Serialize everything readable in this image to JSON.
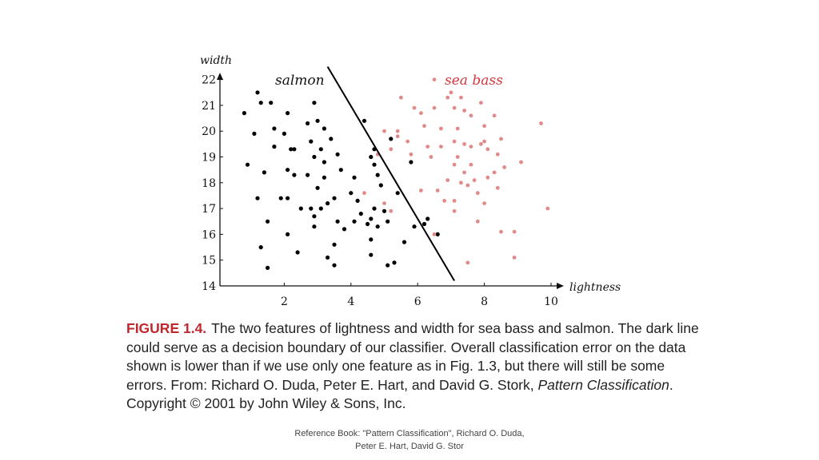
{
  "chart_data": {
    "type": "scatter",
    "title": "",
    "xlabel": "lightness",
    "ylabel": "width",
    "xlim": [
      0.3,
      10.2
    ],
    "ylim": [
      14,
      22.2
    ],
    "xticks": [
      "2",
      "4",
      "6",
      "8",
      "10"
    ],
    "yticks": [
      "14",
      "15",
      "16",
      "17",
      "18",
      "19",
      "20",
      "21",
      "22"
    ],
    "grid": false,
    "decision_boundary": {
      "x1": 3.3,
      "y1": 22.5,
      "x2": 7.1,
      "y2": 14.2
    },
    "series": [
      {
        "name": "salmon",
        "color": "#000000",
        "points": [
          [
            0.8,
            20.7
          ],
          [
            0.9,
            18.7
          ],
          [
            1.1,
            19.9
          ],
          [
            1.2,
            21.5
          ],
          [
            1.3,
            21.1
          ],
          [
            1.4,
            18.4
          ],
          [
            1.2,
            17.4
          ],
          [
            1.5,
            16.5
          ],
          [
            1.6,
            21.1
          ],
          [
            1.7,
            20.1
          ],
          [
            1.7,
            19.4
          ],
          [
            1.3,
            15.5
          ],
          [
            1.5,
            14.7
          ],
          [
            2.0,
            19.9
          ],
          [
            2.1,
            20.7
          ],
          [
            2.2,
            19.3
          ],
          [
            2.3,
            18.3
          ],
          [
            2.1,
            18.5
          ],
          [
            2.1,
            17.4
          ],
          [
            2.5,
            17.0
          ],
          [
            2.1,
            16.0
          ],
          [
            2.7,
            20.3
          ],
          [
            2.9,
            21.1
          ],
          [
            2.8,
            19.6
          ],
          [
            3.0,
            20.4
          ],
          [
            3.2,
            20.1
          ],
          [
            3.1,
            19.3
          ],
          [
            3.2,
            18.8
          ],
          [
            3.2,
            18.2
          ],
          [
            3.4,
            19.7
          ],
          [
            3.6,
            19.1
          ],
          [
            3.7,
            18.5
          ],
          [
            2.9,
            19.0
          ],
          [
            2.7,
            18.3
          ],
          [
            3.0,
            17.8
          ],
          [
            2.8,
            17.0
          ],
          [
            3.1,
            17.0
          ],
          [
            2.9,
            16.7
          ],
          [
            3.3,
            17.2
          ],
          [
            3.5,
            17.4
          ],
          [
            2.9,
            16.3
          ],
          [
            3.6,
            16.5
          ],
          [
            3.8,
            16.2
          ],
          [
            4.1,
            16.5
          ],
          [
            4.3,
            16.8
          ],
          [
            4.0,
            17.6
          ],
          [
            4.1,
            18.2
          ],
          [
            4.2,
            17.3
          ],
          [
            4.4,
            20.4
          ],
          [
            4.6,
            19.0
          ],
          [
            4.7,
            19.3
          ],
          [
            4.7,
            18.7
          ],
          [
            4.8,
            18.3
          ],
          [
            4.9,
            17.9
          ],
          [
            4.7,
            17.0
          ],
          [
            5.0,
            16.9
          ],
          [
            4.6,
            16.6
          ],
          [
            4.5,
            16.4
          ],
          [
            4.8,
            16.3
          ],
          [
            5.1,
            16.5
          ],
          [
            4.6,
            15.8
          ],
          [
            3.5,
            15.6
          ],
          [
            3.3,
            15.1
          ],
          [
            3.5,
            14.8
          ],
          [
            4.6,
            15.2
          ],
          [
            5.1,
            14.8
          ],
          [
            5.3,
            14.9
          ],
          [
            5.4,
            17.6
          ],
          [
            5.6,
            15.7
          ],
          [
            5.9,
            16.3
          ],
          [
            6.3,
            16.6
          ],
          [
            6.2,
            16.4
          ],
          [
            5.8,
            18.8
          ],
          [
            6.6,
            16.0
          ],
          [
            5.2,
            19.7
          ],
          [
            2.4,
            15.3
          ],
          [
            1.9,
            17.4
          ],
          [
            2.3,
            19.3
          ]
        ]
      },
      {
        "name": "sea bass",
        "color": "#e28a8a",
        "points": [
          [
            6.5,
            22.0
          ],
          [
            5.5,
            21.3
          ],
          [
            5.9,
            20.9
          ],
          [
            6.1,
            20.7
          ],
          [
            6.5,
            20.9
          ],
          [
            6.9,
            21.3
          ],
          [
            7.0,
            21.5
          ],
          [
            7.3,
            21.3
          ],
          [
            7.1,
            20.9
          ],
          [
            7.4,
            20.8
          ],
          [
            7.6,
            20.6
          ],
          [
            7.9,
            21.1
          ],
          [
            8.3,
            20.6
          ],
          [
            8.0,
            20.2
          ],
          [
            7.2,
            20.1
          ],
          [
            6.7,
            20.1
          ],
          [
            6.2,
            20.2
          ],
          [
            5.4,
            19.8
          ],
          [
            5.7,
            19.6
          ],
          [
            6.3,
            19.4
          ],
          [
            6.7,
            19.4
          ],
          [
            7.1,
            19.6
          ],
          [
            7.4,
            19.5
          ],
          [
            7.6,
            19.4
          ],
          [
            7.9,
            19.5
          ],
          [
            8.1,
            19.3
          ],
          [
            8.5,
            19.7
          ],
          [
            8.4,
            19.1
          ],
          [
            9.1,
            18.8
          ],
          [
            9.7,
            20.3
          ],
          [
            8.6,
            18.6
          ],
          [
            8.3,
            18.4
          ],
          [
            8.1,
            18.2
          ],
          [
            7.7,
            18.1
          ],
          [
            7.3,
            18.0
          ],
          [
            6.9,
            18.1
          ],
          [
            6.6,
            17.7
          ],
          [
            6.1,
            17.7
          ],
          [
            5.8,
            19.1
          ],
          [
            7.1,
            18.7
          ],
          [
            7.4,
            18.4
          ],
          [
            7.5,
            17.9
          ],
          [
            7.8,
            17.6
          ],
          [
            8.0,
            17.2
          ],
          [
            8.4,
            17.8
          ],
          [
            7.1,
            17.3
          ],
          [
            6.8,
            17.3
          ],
          [
            7.1,
            16.9
          ],
          [
            7.8,
            16.5
          ],
          [
            8.5,
            16.1
          ],
          [
            8.9,
            16.1
          ],
          [
            9.9,
            17.0
          ],
          [
            6.5,
            16.0
          ],
          [
            7.5,
            14.9
          ],
          [
            8.9,
            15.1
          ],
          [
            5.2,
            16.9
          ],
          [
            4.4,
            17.6
          ],
          [
            5.0,
            17.2
          ],
          [
            5.0,
            20.0
          ],
          [
            5.4,
            20.0
          ],
          [
            5.2,
            19.3
          ],
          [
            4.8,
            19.1
          ],
          [
            7.2,
            19.0
          ],
          [
            7.6,
            18.7
          ],
          [
            6.4,
            19.0
          ],
          [
            8.0,
            19.6
          ]
        ]
      }
    ]
  },
  "caption": {
    "figure_label": "FIGURE 1.4.",
    "text_main": "The two features of lightness and width for sea bass and salmon. The dark line could serve as a decision boundary of our classifier. Overall classification error on the data shown is lower than if we use only one feature as in Fig. 1.3, but there will still be some errors. From: Richard O. Duda, Peter E. Hart, and David G. Stork,",
    "book_title": "Pattern Classification",
    "copyright": ". Copyright © 2001 by John Wiley & Sons, Inc."
  },
  "reference": {
    "line1": "Reference Book: \"Pattern Classification\", Richard O. Duda,",
    "line2": "Peter E. Hart, David G. Stor"
  }
}
